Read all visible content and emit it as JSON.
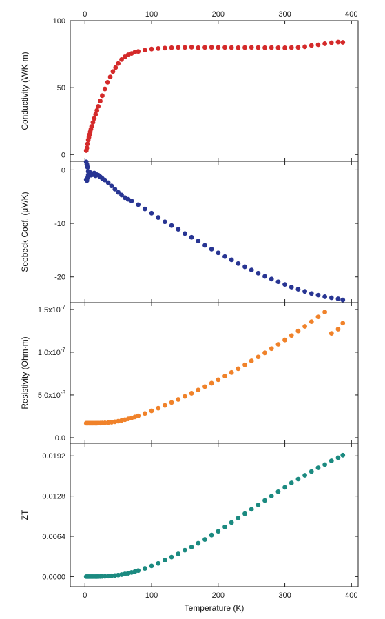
{
  "chart_data": {
    "type": "scatter",
    "shared_x": {
      "label": "Temperature (K)",
      "range": [
        -22,
        410
      ],
      "ticks": [
        0,
        100,
        200,
        300,
        400
      ],
      "tick_labels": [
        "0",
        "100",
        "200",
        "300",
        "400"
      ],
      "top_axis_labels": true
    },
    "panels": [
      {
        "id": "conductivity",
        "ylabel": "Conductivity (W/K·m)",
        "ylim": [
          -5,
          100
        ],
        "yticks": [
          0,
          50,
          100
        ],
        "ytick_labels": [
          "0",
          "50",
          "100"
        ],
        "color": "#d42a2a",
        "series": {
          "x": [
            2,
            3,
            4,
            5,
            6,
            7,
            8,
            9,
            10,
            12,
            14,
            16,
            18,
            20,
            23,
            26,
            30,
            34,
            38,
            42,
            46,
            50,
            55,
            60,
            65,
            70,
            75,
            80,
            90,
            100,
            110,
            120,
            130,
            140,
            150,
            160,
            170,
            180,
            190,
            200,
            210,
            220,
            230,
            240,
            250,
            260,
            270,
            280,
            290,
            300,
            310,
            320,
            330,
            340,
            350,
            360,
            370,
            380,
            387
          ],
          "y": [
            3,
            5,
            8,
            11,
            13,
            15,
            17,
            19,
            21,
            24,
            27,
            30,
            33,
            36,
            40,
            44,
            49,
            54,
            58,
            62,
            65,
            68,
            71,
            73,
            74.5,
            75.5,
            76.5,
            77,
            78,
            78.8,
            79.2,
            79.5,
            79.8,
            80,
            80,
            80.2,
            79.8,
            80,
            80.1,
            80,
            80,
            79.9,
            79.8,
            79.9,
            80,
            79.9,
            79.8,
            79.9,
            79.8,
            79.7,
            79.9,
            80,
            80.5,
            81.5,
            82,
            82.8,
            83.5,
            84,
            83.8
          ]
        }
      },
      {
        "id": "seebeck",
        "ylabel": "Seebeck Coef. (μV/K)",
        "ylim": [
          -24.8,
          1.6
        ],
        "yticks": [
          0,
          -10,
          -20
        ],
        "ytick_labels": [
          "0",
          "-10",
          "-20"
        ],
        "color": "#283593",
        "series": {
          "x": [
            2,
            2,
            3,
            3,
            4,
            4,
            5,
            5,
            6,
            7,
            8,
            9,
            10,
            12,
            14,
            16,
            18,
            20,
            23,
            26,
            30,
            35,
            40,
            45,
            50,
            55,
            60,
            65,
            70,
            80,
            90,
            100,
            110,
            120,
            130,
            140,
            150,
            160,
            170,
            180,
            190,
            200,
            210,
            220,
            230,
            240,
            250,
            260,
            270,
            280,
            290,
            300,
            310,
            320,
            330,
            340,
            350,
            360,
            370,
            380,
            387
          ],
          "y": [
            1.5,
            -1.8,
            1.0,
            -2.0,
            0.5,
            -1.5,
            -0.3,
            -1.0,
            -0.6,
            -0.8,
            -0.5,
            -1.0,
            -0.7,
            -0.9,
            -0.6,
            -1.1,
            -0.9,
            -1.0,
            -1.3,
            -1.6,
            -1.9,
            -2.4,
            -3.0,
            -3.6,
            -4.2,
            -4.7,
            -5.2,
            -5.5,
            -5.8,
            -6.5,
            -7.3,
            -8.1,
            -8.9,
            -9.7,
            -10.4,
            -11.1,
            -11.9,
            -12.6,
            -13.3,
            -14.1,
            -14.8,
            -15.5,
            -16.2,
            -16.8,
            -17.5,
            -18.1,
            -18.7,
            -19.3,
            -19.9,
            -20.4,
            -20.9,
            -21.4,
            -21.9,
            -22.3,
            -22.7,
            -23.1,
            -23.4,
            -23.7,
            -23.9,
            -24.1,
            -24.3
          ]
        }
      },
      {
        "id": "resistivity",
        "ylabel": "Resistivity (Ohm·m)",
        "ylim": [
          -6.5e-09,
          1.58e-07
        ],
        "yticks": [
          0,
          5e-08,
          1e-07,
          1.5e-07
        ],
        "ytick_labels": [
          "0.0",
          "5.0x10⁻⁸",
          "1.0x10⁻⁷",
          "1.5x10⁻⁷"
        ],
        "color": "#f0822a",
        "series": {
          "x": [
            2,
            4,
            6,
            8,
            10,
            12,
            14,
            16,
            18,
            20,
            23,
            26,
            30,
            35,
            40,
            45,
            50,
            55,
            60,
            65,
            70,
            75,
            80,
            90,
            100,
            110,
            120,
            130,
            140,
            150,
            160,
            170,
            180,
            190,
            200,
            210,
            220,
            230,
            240,
            250,
            260,
            270,
            280,
            290,
            300,
            310,
            320,
            330,
            340,
            350,
            360,
            370,
            380,
            387
          ],
          "y": [
            1.7e-08,
            1.7e-08,
            1.7e-08,
            1.7e-08,
            1.7e-08,
            1.7e-08,
            1.7e-08,
            1.7e-08,
            1.7e-08,
            1.71e-08,
            1.71e-08,
            1.72e-08,
            1.74e-08,
            1.77e-08,
            1.81e-08,
            1.86e-08,
            1.93e-08,
            2.01e-08,
            2.1e-08,
            2.2e-08,
            2.31e-08,
            2.43e-08,
            2.56e-08,
            2.84e-08,
            3.14e-08,
            3.45e-08,
            3.78e-08,
            4.12e-08,
            4.47e-08,
            4.83e-08,
            5.2e-08,
            5.58e-08,
            5.97e-08,
            6.37e-08,
            6.78e-08,
            7.2e-08,
            7.63e-08,
            8.07e-08,
            8.52e-08,
            8.98e-08,
            9.45e-08,
            9.93e-08,
            1.042e-07,
            1.092e-07,
            1.143e-07,
            1.195e-07,
            1.248e-07,
            1.302e-07,
            1.357e-07,
            1.413e-07,
            1.47e-07,
            1.22e-07,
            1.27e-07,
            1.34e-07
          ]
        }
      },
      {
        "id": "zt",
        "ylabel": "ZT",
        "ylim": [
          -0.0016,
          0.0212
        ],
        "yticks": [
          0,
          0.0064,
          0.0128,
          0.0192
        ],
        "ytick_labels": [
          "0.0000",
          "0.0064",
          "0.0128",
          "0.0192"
        ],
        "color": "#1b8a80",
        "series": {
          "x": [
            2,
            4,
            6,
            8,
            10,
            12,
            14,
            16,
            18,
            20,
            23,
            26,
            30,
            35,
            40,
            45,
            50,
            55,
            60,
            65,
            70,
            75,
            80,
            90,
            100,
            110,
            120,
            130,
            140,
            150,
            160,
            170,
            180,
            190,
            200,
            210,
            220,
            230,
            240,
            250,
            260,
            270,
            280,
            290,
            300,
            310,
            320,
            330,
            340,
            350,
            360,
            370,
            380,
            387
          ],
          "y": [
            0,
            0,
            0,
            0,
            0,
            0,
            0,
            0,
            0,
            1e-05,
            2e-05,
            3e-05,
            5e-05,
            8e-05,
            0.00012,
            0.00017,
            0.00024,
            0.00032,
            0.00042,
            0.00053,
            0.00066,
            0.0008,
            0.00095,
            0.0013,
            0.0017,
            0.0021,
            0.0026,
            0.0031,
            0.0036,
            0.0042,
            0.0047,
            0.0053,
            0.0059,
            0.0066,
            0.0072,
            0.0079,
            0.0086,
            0.0093,
            0.01,
            0.0107,
            0.0114,
            0.0121,
            0.0128,
            0.0135,
            0.0142,
            0.0149,
            0.0155,
            0.0161,
            0.0167,
            0.0173,
            0.0178,
            0.0184,
            0.0189,
            0.0193
          ]
        }
      }
    ]
  }
}
